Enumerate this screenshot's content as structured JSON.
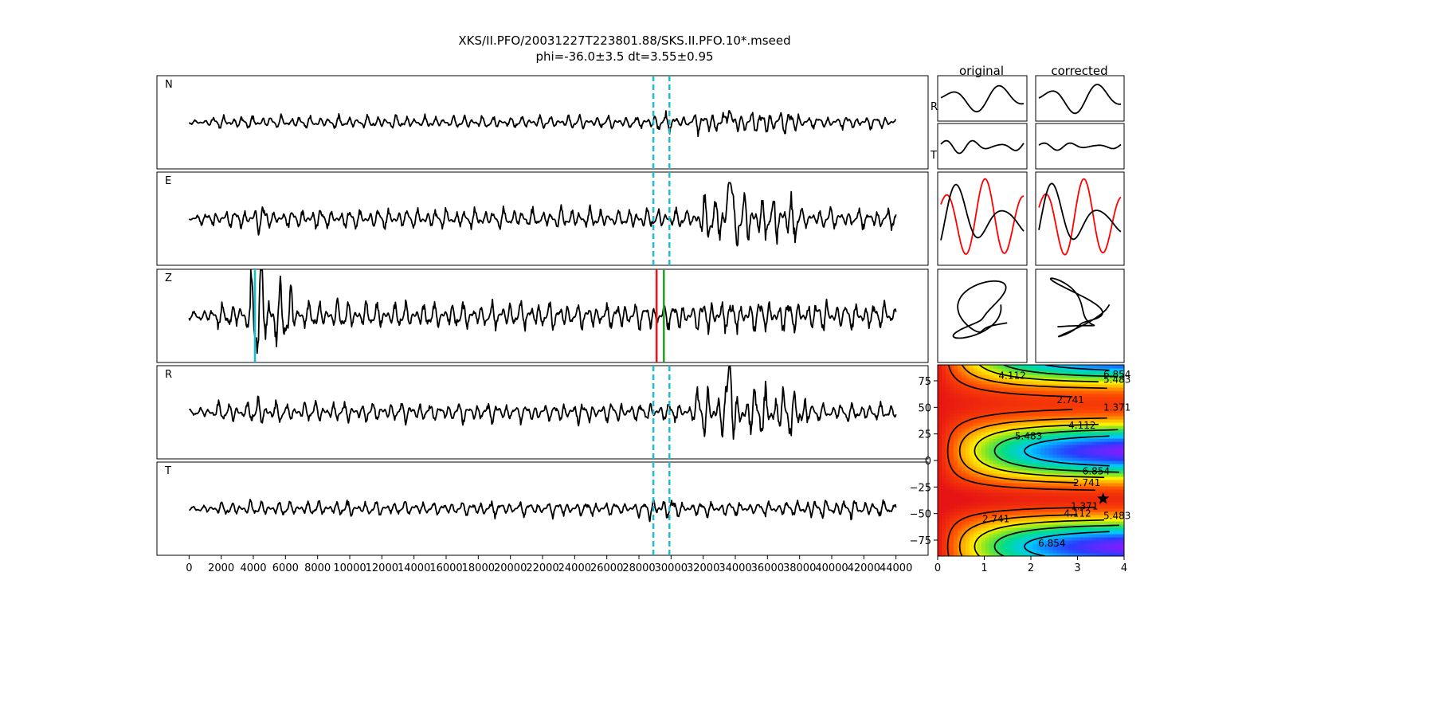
{
  "figure": {
    "title_line1": "XKS/II.PFO/20031227T223801.88/SKS.II.PFO.10*.mseed",
    "title_line2": "phi=-36.0±3.5 dt=3.55±0.95"
  },
  "chart_data": [
    {
      "type": "line",
      "panel": "waveforms",
      "traces": [
        "N",
        "E",
        "Z",
        "R",
        "T"
      ],
      "xlim": [
        -2000,
        46000
      ],
      "x_ticks": [
        "0",
        "2000",
        "4000",
        "6000",
        "8000",
        "10000",
        "12000",
        "14000",
        "16000",
        "18000",
        "20000",
        "22000",
        "24000",
        "26000",
        "28000",
        "30000",
        "32000",
        "34000",
        "36000",
        "38000",
        "40000",
        "42000",
        "44000"
      ],
      "x_tick_values": [
        0,
        2000,
        4000,
        6000,
        8000,
        10000,
        12000,
        14000,
        16000,
        18000,
        20000,
        22000,
        24000,
        26000,
        28000,
        30000,
        32000,
        34000,
        36000,
        38000,
        40000,
        42000,
        44000
      ],
      "trace_x_range": [
        0,
        44000
      ],
      "window_lines": {
        "start": 28900,
        "end": 29900,
        "color": "#17becf",
        "style": "dashed",
        "on_traces": [
          "N",
          "E",
          "R",
          "T"
        ]
      },
      "z_markers": [
        {
          "x": 4100,
          "color": "#17becf"
        },
        {
          "x": 29100,
          "color": "#e41a1c"
        },
        {
          "x": 29550,
          "color": "#2ca02c"
        }
      ]
    },
    {
      "type": "line",
      "panel": "particle-motion",
      "columns": [
        "original",
        "corrected"
      ],
      "row_labels": [
        "R",
        "T"
      ]
    },
    {
      "type": "heatmap",
      "panel": "error-surface",
      "xlim": [
        0,
        4
      ],
      "ylim": [
        -90,
        90
      ],
      "x_ticks": [
        "0",
        "1",
        "2",
        "3",
        "4"
      ],
      "x_tick_values": [
        0,
        1,
        2,
        3,
        4
      ],
      "y_ticks": [
        "75",
        "50",
        "25",
        "0",
        "−25",
        "−50",
        "−75"
      ],
      "y_tick_values": [
        75,
        50,
        25,
        0,
        -25,
        -50,
        -75
      ],
      "contour_levels": [
        1.371,
        2.741,
        4.112,
        5.483,
        6.854
      ],
      "contour_labels": [
        "1.371",
        "2.741",
        "4.112",
        "5.483",
        "6.854"
      ],
      "best": {
        "dt": 3.55,
        "phi": -36.0
      }
    }
  ]
}
